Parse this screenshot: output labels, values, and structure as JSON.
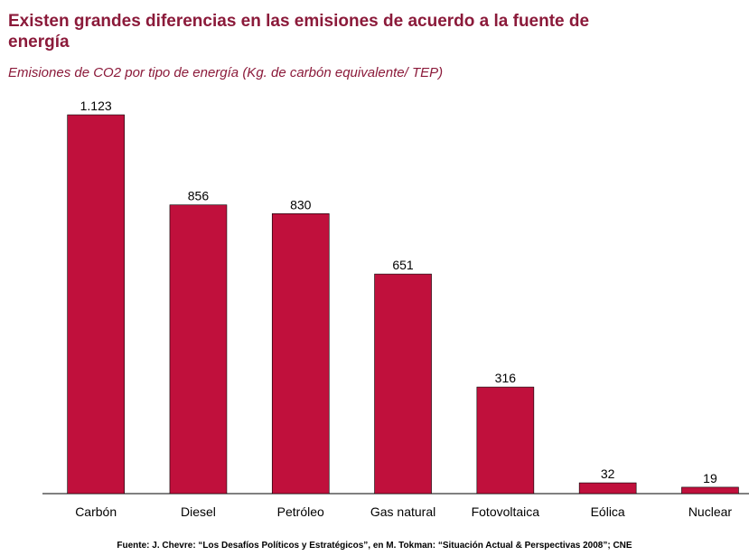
{
  "chart_data": {
    "type": "bar",
    "title": "Existen grandes diferencias en las emisiones de acuerdo a la fuente de energía",
    "subtitle": "Emisiones de CO2 por tipo de energía (Kg. de carbón equivalente/ TEP)",
    "categories": [
      "Carbón",
      "Diesel",
      "Petróleo",
      "Gas natural",
      "Fotovoltaica",
      "Eólica",
      "Nuclear"
    ],
    "values": [
      1123,
      856,
      830,
      651,
      316,
      32,
      19
    ],
    "value_labels": [
      "1.123",
      "856",
      "830",
      "651",
      "316",
      "32",
      "19"
    ],
    "color": "#c0103c",
    "source": "Fuente: J. Chevre: “Los Desafíos Políticos y Estratégicos”, en M. Tokman: “Situación Actual & Perspectivas 2008”; CNE"
  }
}
